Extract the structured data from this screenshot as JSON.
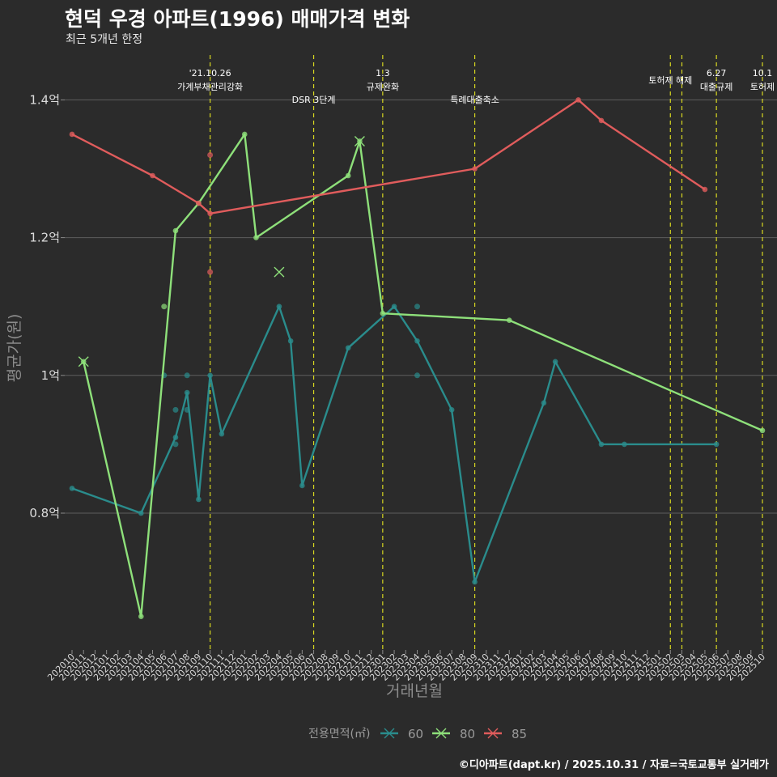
{
  "title": "현덕 우경 아파트(1996) 매매가격 변화",
  "subtitle": "최근 5개년 한정",
  "caption": "©디아파트(dapt.kr) / 2025.10.31 / 자료=국토교통부 실거래가",
  "chart_data": {
    "type": "line",
    "title": "현덕 우경 아파트(1996) 매매가격 변화",
    "xlabel": "거래년월",
    "ylabel": "평균가(원)",
    "ylim": [
      0.62,
      1.45
    ],
    "yticks": [
      {
        "value": 0.8,
        "label": "0.8억"
      },
      {
        "value": 1.0,
        "label": "1억"
      },
      {
        "value": 1.2,
        "label": "1.2억"
      },
      {
        "value": 1.4,
        "label": "1.4억"
      }
    ],
    "categories": [
      "202010",
      "202011",
      "202012",
      "202101",
      "202102",
      "202103",
      "202104",
      "202105",
      "202106",
      "202107",
      "202108",
      "202109",
      "202110",
      "202111",
      "202112",
      "202201",
      "202202",
      "202203",
      "202204",
      "202205",
      "202206",
      "202207",
      "202208",
      "202209",
      "202210",
      "202211",
      "202212",
      "202301",
      "202302",
      "202303",
      "202304",
      "202305",
      "202306",
      "202307",
      "202308",
      "202309",
      "202310",
      "202311",
      "202312",
      "202401",
      "202402",
      "202403",
      "202404",
      "202405",
      "202406",
      "202407",
      "202408",
      "202409",
      "202410",
      "202411",
      "202412",
      "202501",
      "202502",
      "202503",
      "202504",
      "202505",
      "202506",
      "202507",
      "202508",
      "202509",
      "202510"
    ],
    "legend_title": "전용면적(㎡)",
    "series": [
      {
        "name": "60",
        "color": "#2a8c8c",
        "line": [
          [
            "202010",
            0.836
          ],
          [
            "202104",
            0.8
          ],
          [
            "202107",
            0.91
          ],
          [
            "202108",
            0.975
          ],
          [
            "202109",
            0.82
          ],
          [
            "202110",
            1.0
          ],
          [
            "202111",
            0.915
          ],
          [
            "202204",
            1.1
          ],
          [
            "202205",
            1.05
          ],
          [
            "202206",
            0.84
          ],
          [
            "202210",
            1.04
          ],
          [
            "202302",
            1.1
          ],
          [
            "202304",
            1.05
          ],
          [
            "202307",
            0.95
          ],
          [
            "202309",
            0.7
          ],
          [
            "202403",
            0.96
          ],
          [
            "202404",
            1.02
          ],
          [
            "202408",
            0.9
          ],
          [
            "202410",
            0.9
          ],
          [
            "202506",
            0.9
          ]
        ],
        "points": [
          [
            "202106",
            1.0
          ],
          [
            "202107",
            0.95
          ],
          [
            "202107",
            0.9
          ],
          [
            "202108",
            1.0
          ],
          [
            "202108",
            0.95
          ],
          [
            "202304",
            1.1
          ],
          [
            "202304",
            1.0
          ]
        ],
        "cross_points": []
      },
      {
        "name": "80",
        "color": "#8ee07a",
        "line": [
          [
            "202011",
            1.02
          ],
          [
            "202104",
            0.65
          ],
          [
            "202107",
            1.21
          ],
          [
            "202109",
            1.25
          ],
          [
            "202201",
            1.35
          ],
          [
            "202202",
            1.2
          ],
          [
            "202210",
            1.29
          ],
          [
            "202211",
            1.34
          ],
          [
            "202301",
            1.09
          ],
          [
            "202312",
            1.08
          ],
          [
            "202510",
            0.92
          ]
        ],
        "points": [
          [
            "202106",
            1.1
          ]
        ],
        "cross_points": [
          [
            "202011",
            1.02
          ],
          [
            "202204",
            1.15
          ],
          [
            "202211",
            1.34
          ]
        ]
      },
      {
        "name": "85",
        "color": "#e05c5c",
        "line": [
          [
            "202010",
            1.35
          ],
          [
            "202105",
            1.29
          ],
          [
            "202109",
            1.25
          ],
          [
            "202110",
            1.235
          ],
          [
            "202309",
            1.3
          ],
          [
            "202406",
            1.4
          ],
          [
            "202408",
            1.37
          ],
          [
            "202505",
            1.27
          ]
        ],
        "points": [
          [
            "202110",
            1.32
          ],
          [
            "202110",
            1.15
          ]
        ],
        "cross_points": []
      }
    ],
    "events": [
      {
        "month": "202110",
        "label1": "'21.10.26",
        "label2": "가계부채관리강화"
      },
      {
        "month": "202207",
        "label1": "",
        "label2": "DSR 3단계"
      },
      {
        "month": "202301",
        "label1": "1.3",
        "label2": "규제완화"
      },
      {
        "month": "202309",
        "label1": "",
        "label2": "특례대출축소"
      },
      {
        "month": "202502",
        "label1": "토허제 해제",
        "label2": ""
      },
      {
        "month": "202503",
        "label1": "",
        "label2": ""
      },
      {
        "month": "202506",
        "label1": "6.27",
        "label2": "대출규제"
      },
      {
        "month": "202510",
        "label1": "10.1",
        "label2": "토허제"
      }
    ]
  }
}
